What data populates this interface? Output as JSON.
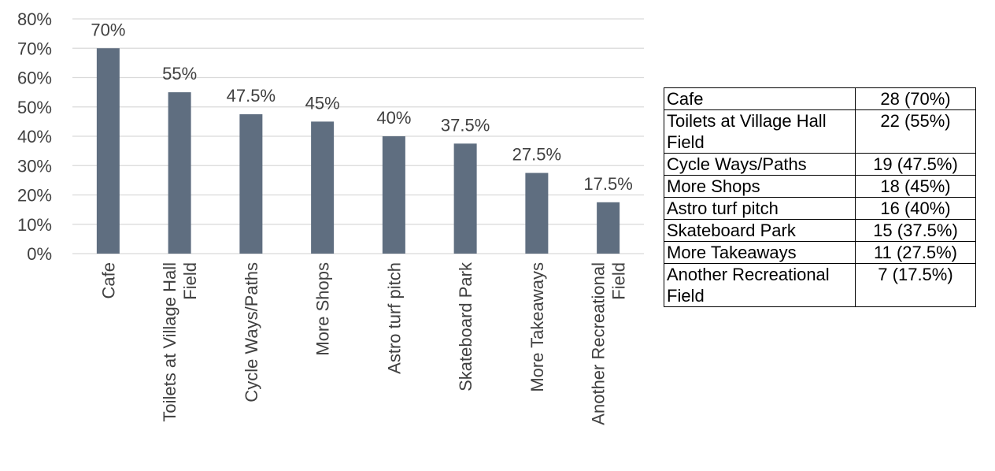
{
  "chart_data": {
    "type": "bar",
    "categories": [
      [
        "Cafe"
      ],
      [
        "Toilets at Village Hall",
        "Field"
      ],
      [
        "Cycle Ways/Paths"
      ],
      [
        "More Shops"
      ],
      [
        "Astro turf pitch"
      ],
      [
        "Skateboard Park"
      ],
      [
        "More Takeaways"
      ],
      [
        "Another Recreational",
        "Field"
      ]
    ],
    "values": [
      70,
      55,
      47.5,
      45,
      40,
      37.5,
      27.5,
      17.5
    ],
    "data_labels": [
      "70%",
      "55%",
      "47.5%",
      "45%",
      "40%",
      "37.5%",
      "27.5%",
      "17.5%"
    ],
    "yticks": [
      "0%",
      "10%",
      "20%",
      "30%",
      "40%",
      "50%",
      "60%",
      "70%",
      "80%"
    ],
    "ylim": [
      0,
      80
    ],
    "grid": true,
    "bar_color": "#5f6e80"
  },
  "table": {
    "rows": [
      {
        "label": "Cafe",
        "value": "28 (70%)"
      },
      {
        "label": "Toilets at Village Hall Field",
        "value": "22 (55%)"
      },
      {
        "label": "Cycle Ways/Paths",
        "value": "19 (47.5%)"
      },
      {
        "label": "More Shops",
        "value": "18 (45%)"
      },
      {
        "label": "Astro turf pitch",
        "value": "16 (40%)"
      },
      {
        "label": "Skateboard Park",
        "value": "15 (37.5%)"
      },
      {
        "label": "More Takeaways",
        "value": "11 (27.5%)"
      },
      {
        "label": "Another Recreational Field",
        "value": "7 (17.5%)"
      }
    ]
  }
}
